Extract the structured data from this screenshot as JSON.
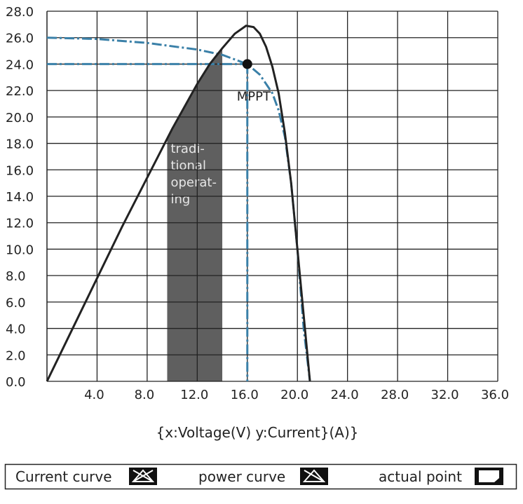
{
  "chart_data": {
    "type": "line",
    "axis_label": "{x:Voltage(V)   y:Current}(A)}",
    "xlim": [
      0,
      36
    ],
    "ylim": [
      0,
      28
    ],
    "grid": true,
    "xticks": [
      {
        "value": 4,
        "label": "4.0"
      },
      {
        "value": 8,
        "label": "8.0"
      },
      {
        "value": 12,
        "label": "12.0"
      },
      {
        "value": 16,
        "label": "16.0"
      },
      {
        "value": 20,
        "label": "20.0"
      },
      {
        "value": 24,
        "label": "24.0"
      },
      {
        "value": 28,
        "label": "28.0"
      },
      {
        "value": 32,
        "label": "32.0"
      },
      {
        "value": 36,
        "label": "36.0"
      }
    ],
    "yticks": [
      {
        "value": 0,
        "label": "0.0"
      },
      {
        "value": 2,
        "label": "2.0"
      },
      {
        "value": 4,
        "label": "4.0"
      },
      {
        "value": 6,
        "label": "6.0"
      },
      {
        "value": 8,
        "label": "8.0"
      },
      {
        "value": 10,
        "label": "10.0"
      },
      {
        "value": 12,
        "label": "12.0"
      },
      {
        "value": 14,
        "label": "14.0"
      },
      {
        "value": 16,
        "label": "16.0"
      },
      {
        "value": 18,
        "label": "18.0"
      },
      {
        "value": 20,
        "label": "20.0"
      },
      {
        "value": 22,
        "label": "22.0"
      },
      {
        "value": 24,
        "label": "24.0"
      },
      {
        "value": 26,
        "label": "26.0"
      },
      {
        "value": 28,
        "label": "28.0"
      }
    ],
    "series": [
      {
        "name": "Current curve",
        "color": "#3a80a8",
        "dashed": true,
        "x": [
          0,
          4,
          8,
          12,
          14,
          16,
          17,
          18,
          18.5,
          19,
          19.5,
          20,
          20.5,
          21
        ],
        "values": [
          26,
          25.9,
          25.6,
          25.1,
          24.7,
          24,
          23.2,
          21.8,
          20.5,
          18.5,
          15,
          10,
          4,
          0
        ]
      },
      {
        "name": "power curve",
        "color": "#222222",
        "dashed": false,
        "x": [
          0,
          2,
          4,
          6,
          8,
          10,
          12,
          13,
          14,
          15,
          15.9,
          16.5,
          17,
          17.5,
          18,
          18.5,
          19,
          19.5,
          20,
          20.5,
          21
        ],
        "values": [
          0,
          3.9,
          7.8,
          11.7,
          15.4,
          19.1,
          22.5,
          24,
          25.2,
          26.3,
          26.9,
          26.8,
          26.3,
          25.3,
          23.8,
          21.8,
          18.8,
          15,
          10,
          5,
          0
        ]
      }
    ],
    "mppt": {
      "name": "actual point",
      "label": "MPPT",
      "x": 16,
      "y": 24
    },
    "shaded_region": {
      "x": [
        9.6,
        14
      ],
      "label_lines": [
        "tradi-",
        "tional",
        "operat-",
        "ing"
      ]
    }
  }
}
